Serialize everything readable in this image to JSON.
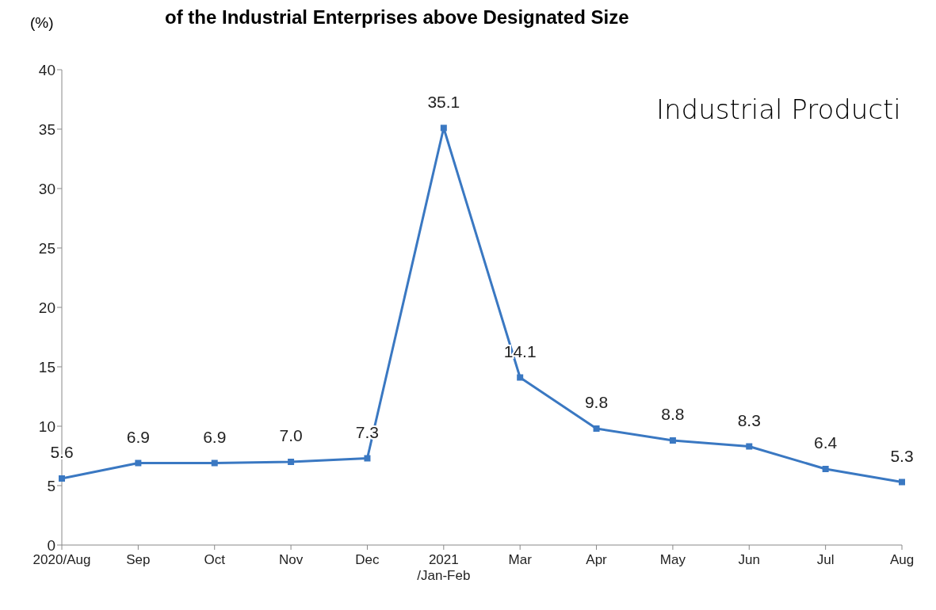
{
  "chart_data": {
    "type": "line",
    "title": "of the Industrial Enterprises above Designated Size",
    "ylabel": "(%)",
    "annotations": [
      "Industrial Producti"
    ],
    "categories": [
      "2020/Aug",
      "Sep",
      "Oct",
      "Nov",
      "Dec",
      "2021\n/Jan-Feb",
      "Mar",
      "Apr",
      "May",
      "Jun",
      "Jul",
      "Aug"
    ],
    "series": [
      {
        "color": "#3a78c2",
        "values": [
          5.6,
          6.9,
          6.9,
          7.0,
          7.3,
          35.1,
          14.1,
          9.8,
          8.8,
          8.3,
          6.4,
          5.3
        ],
        "value_labels": [
          "5.6",
          "6.9",
          "6.9",
          "7.0",
          "7.3",
          "35.1",
          "14.1",
          "9.8",
          "8.8",
          "8.3",
          "6.4",
          "5.3"
        ]
      }
    ],
    "ylim": [
      0,
      40
    ],
    "yticks": [
      0,
      5,
      10,
      15,
      20,
      25,
      30,
      35,
      40
    ],
    "grid": false,
    "legend": false,
    "marker": "square",
    "line_style": "solid"
  }
}
